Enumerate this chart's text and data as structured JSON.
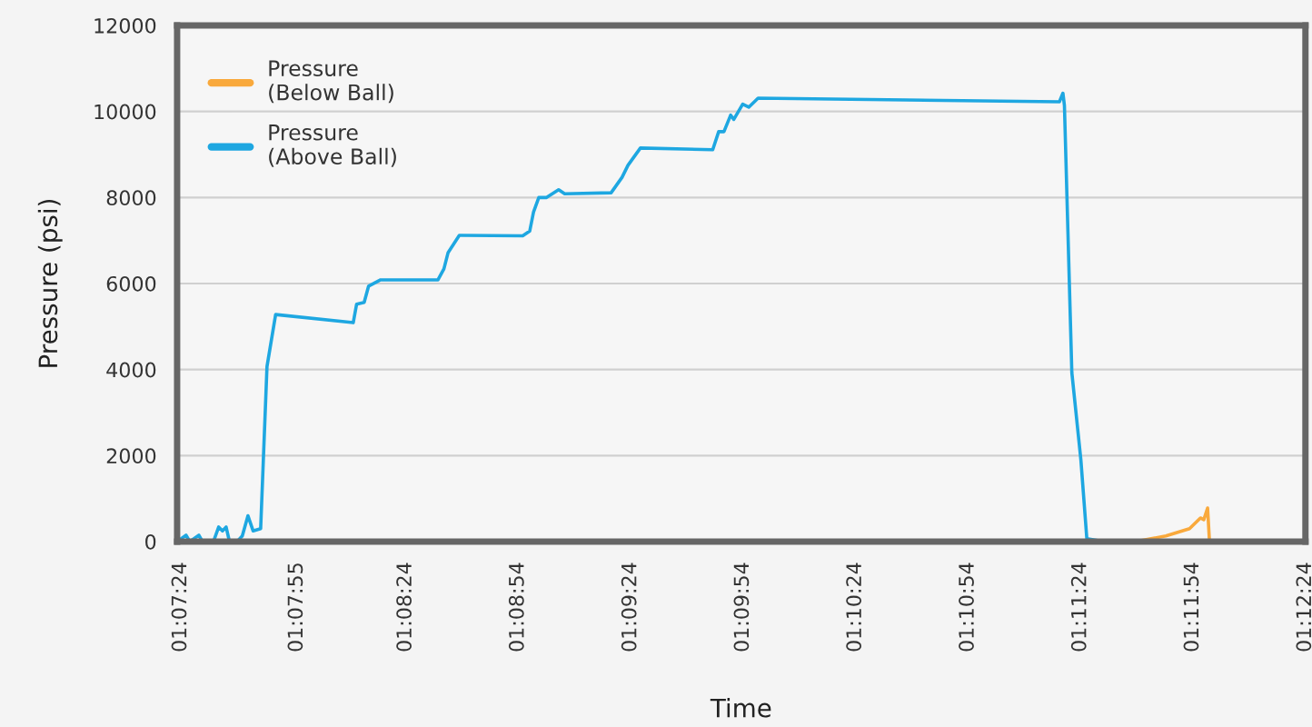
{
  "chart_data": {
    "type": "line",
    "xlabel": "Time",
    "ylabel": "Pressure (psi)",
    "xlim": [
      1.12306,
      1.20667
    ],
    "xticks": [
      {
        "value": 1.12333,
        "label": "01:07:24"
      },
      {
        "value": 1.13194,
        "label": "01:07:55"
      },
      {
        "value": 1.14,
        "label": "01:08:24"
      },
      {
        "value": 1.14833,
        "label": "01:08:54"
      },
      {
        "value": 1.15667,
        "label": "01:09:24"
      },
      {
        "value": 1.165,
        "label": "01:09:54"
      },
      {
        "value": 1.17333,
        "label": "01:10:24"
      },
      {
        "value": 1.18167,
        "label": "01:10:54"
      },
      {
        "value": 1.19,
        "label": "01:11:24"
      },
      {
        "value": 1.19833,
        "label": "01:11:54"
      },
      {
        "value": 1.20667,
        "label": "01:12:24"
      }
    ],
    "ylim": [
      0,
      12000
    ],
    "yticks": [
      0,
      2000,
      4000,
      6000,
      8000,
      10000,
      12000
    ],
    "grid": "y",
    "legend": "top left",
    "marker": "none",
    "line_style": "solid",
    "series": [
      {
        "name": "Pressure\n(Below Ball)",
        "color": "#f9a93c",
        "x": [
          1.19203,
          1.19406,
          1.19633,
          1.19808,
          1.19889,
          1.19914,
          1.19942,
          1.19956,
          1.20008
        ],
        "values": [
          0,
          0,
          130,
          300,
          550,
          510,
          780,
          0,
          0
        ]
      },
      {
        "name": "Pressure\n(Above Ball)",
        "color": "#1ea7e1",
        "x": [
          1.12306,
          1.12372,
          1.124,
          1.12467,
          1.12494,
          1.12575,
          1.12614,
          1.12642,
          1.12669,
          1.12694,
          1.1275,
          1.12789,
          1.12831,
          1.12869,
          1.12925,
          1.12972,
          1.13036,
          1.13611,
          1.13636,
          1.13692,
          1.13725,
          1.13814,
          1.14239,
          1.14283,
          1.14314,
          1.14397,
          1.14867,
          1.14919,
          1.14947,
          1.14986,
          1.15044,
          1.15133,
          1.15178,
          1.15522,
          1.15603,
          1.15647,
          1.15739,
          1.16275,
          1.16319,
          1.16358,
          1.16408,
          1.16431,
          1.16497,
          1.16542,
          1.16611,
          1.18844,
          1.1887,
          1.18881,
          1.18936,
          1.19003,
          1.19047,
          1.19178
        ],
        "values": [
          0,
          150,
          0,
          150,
          0,
          0,
          340,
          250,
          340,
          0,
          0,
          130,
          600,
          250,
          300,
          4070,
          5280,
          5090,
          5520,
          5560,
          5940,
          6085,
          6085,
          6340,
          6720,
          7120,
          7110,
          7220,
          7660,
          8000,
          8000,
          8180,
          8085,
          8110,
          8470,
          8750,
          9150,
          9110,
          9530,
          9530,
          9915,
          9815,
          10170,
          10100,
          10310,
          10225,
          10425,
          10140,
          3930,
          1900,
          70,
          0
        ]
      }
    ]
  }
}
